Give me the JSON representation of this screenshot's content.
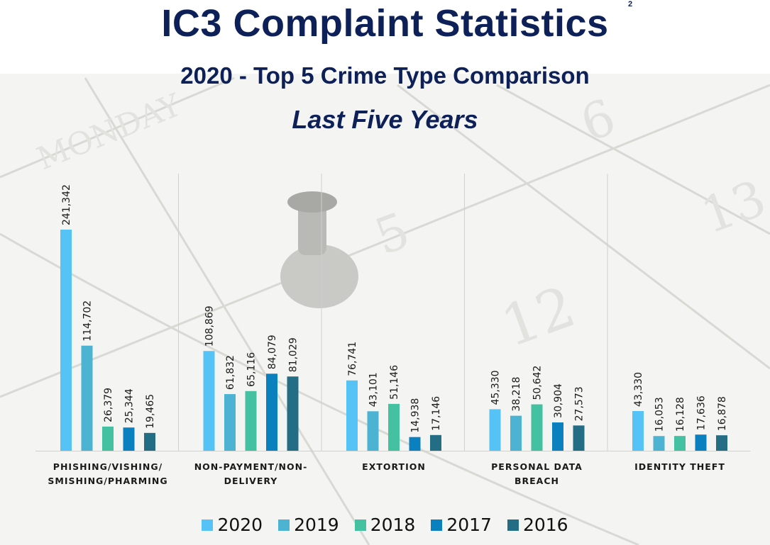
{
  "header": {
    "title": "IC3 Complaint Statistics",
    "superscript": "2",
    "subtitle": "2020 - Top 5 Crime Type Comparison",
    "subtitle2": "Last Five Years"
  },
  "chart_data": {
    "type": "bar",
    "title": "2020 - Top 5 Crime Type Comparison",
    "subtitle": "Last Five Years",
    "xlabel": "",
    "ylabel": "",
    "ylim": [
      0,
      241342
    ],
    "grid": false,
    "legend_position": "bottom",
    "categories": [
      [
        "PHISHING/VISHING/",
        "SMISHING/PHARMING"
      ],
      [
        "NON-PAYMENT/NON-",
        "DELIVERY"
      ],
      [
        "EXTORTION"
      ],
      [
        "PERSONAL DATA",
        "BREACH"
      ],
      [
        "IDENTITY THEFT"
      ]
    ],
    "series": [
      {
        "name": "2020",
        "color": "#55c3f6",
        "values": [
          241342,
          108869,
          76741,
          45330,
          43330
        ],
        "labels": [
          "241,342",
          "108,869",
          "76,741",
          "45,330",
          "43,330"
        ]
      },
      {
        "name": "2019",
        "color": "#4db3d3",
        "values": [
          114702,
          61832,
          43101,
          38218,
          16053
        ],
        "labels": [
          "114,702",
          "61,832",
          "43,101",
          "38,218",
          "16,053"
        ]
      },
      {
        "name": "2018",
        "color": "#44c1a0",
        "values": [
          26379,
          65116,
          51146,
          50642,
          16128
        ],
        "labels": [
          "26,379",
          "65,116",
          "51,146",
          "50,642",
          "16,128"
        ]
      },
      {
        "name": "2017",
        "color": "#0a80bf",
        "values": [
          25344,
          84079,
          14938,
          30904,
          17636
        ],
        "labels": [
          "25,344",
          "84,079",
          "14,938",
          "30,904",
          "17,636"
        ]
      },
      {
        "name": "2016",
        "color": "#236d85",
        "values": [
          19465,
          81029,
          17146,
          27573,
          16878
        ],
        "labels": [
          "19,465",
          "81,029",
          "17,146",
          "27,573",
          "16,878"
        ]
      }
    ]
  }
}
